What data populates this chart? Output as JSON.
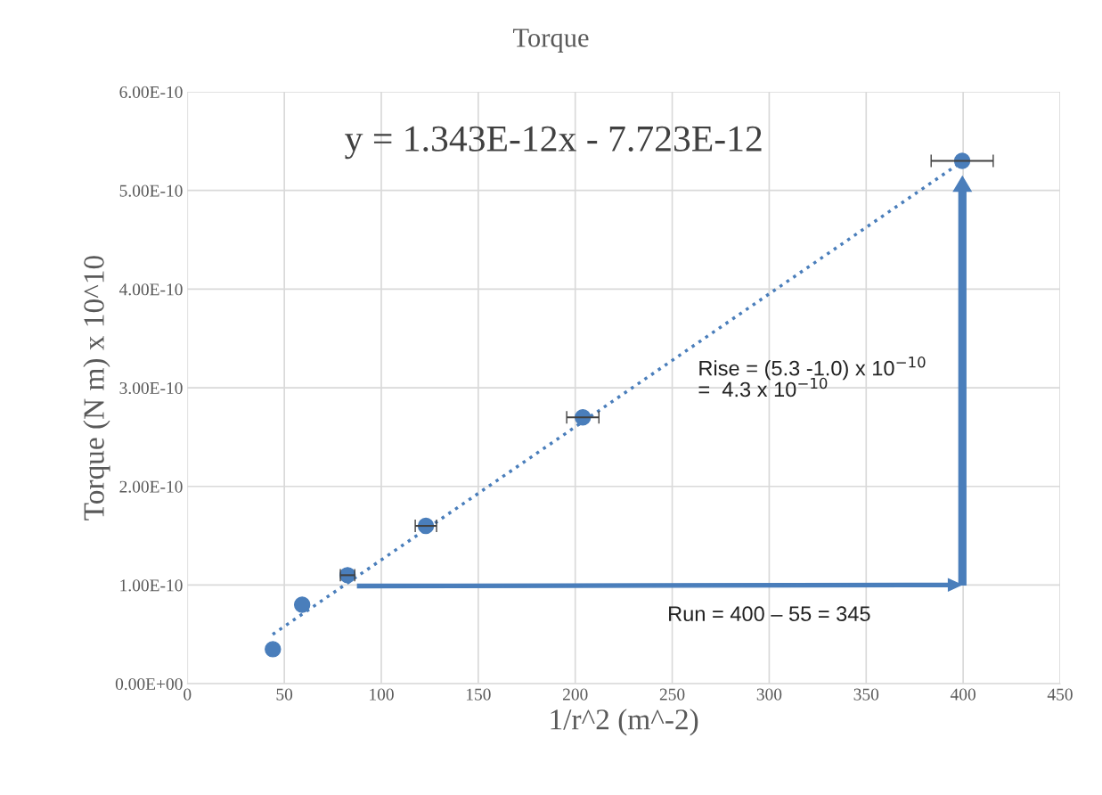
{
  "chart_data": {
    "type": "scatter",
    "title": "Torque",
    "xlabel": "1/r^2 (m^-2)",
    "ylabel": "Torque (N m) x 10^10",
    "series": [
      {
        "color": "#4a7ebb",
        "x": [
          44.1,
          59.2,
          82.6,
          123,
          203.9,
          399.5
        ],
        "values": [
          3.5e-11,
          8e-11,
          1.1e-10,
          1.6e-10,
          2.7e-10,
          5.3e-10
        ],
        "xerrors": [
          null,
          null,
          3.7,
          5.5,
          8.3,
          16
        ],
        "marker": "circle"
      },
      {
        "type": "line",
        "color": "#4a7ebb",
        "x": [
          44,
          400
        ],
        "values": [
          5e-11,
          5.3e-10
        ],
        "line_style": "dotted",
        "marker": "none"
      }
    ],
    "xlim": [
      0,
      450
    ],
    "xticks": [
      0,
      50,
      100,
      150,
      200,
      250,
      300,
      350,
      400,
      450
    ],
    "ylim": [
      0,
      6e-10
    ],
    "yticks": [
      {
        "value": 0,
        "label": "0.00E+00"
      },
      {
        "value": 1e-10,
        "label": "1.00E-10"
      },
      {
        "value": 2e-10,
        "label": "2.00E-10"
      },
      {
        "value": 3e-10,
        "label": "3.00E-10"
      },
      {
        "value": 4e-10,
        "label": "4.00E-10"
      },
      {
        "value": 5e-10,
        "label": "5.00E-10"
      },
      {
        "value": 6e-10,
        "label": "6.00E-10"
      }
    ],
    "grid": true,
    "annotations": [
      "y = 1.343E-12x - 7.723E-12",
      "Rise = (5.3 -1.0) x 10$^{−10}$\n=  4.3 x 10$^{−10}$",
      "Run = 400 – 55 = 345"
    ]
  }
}
